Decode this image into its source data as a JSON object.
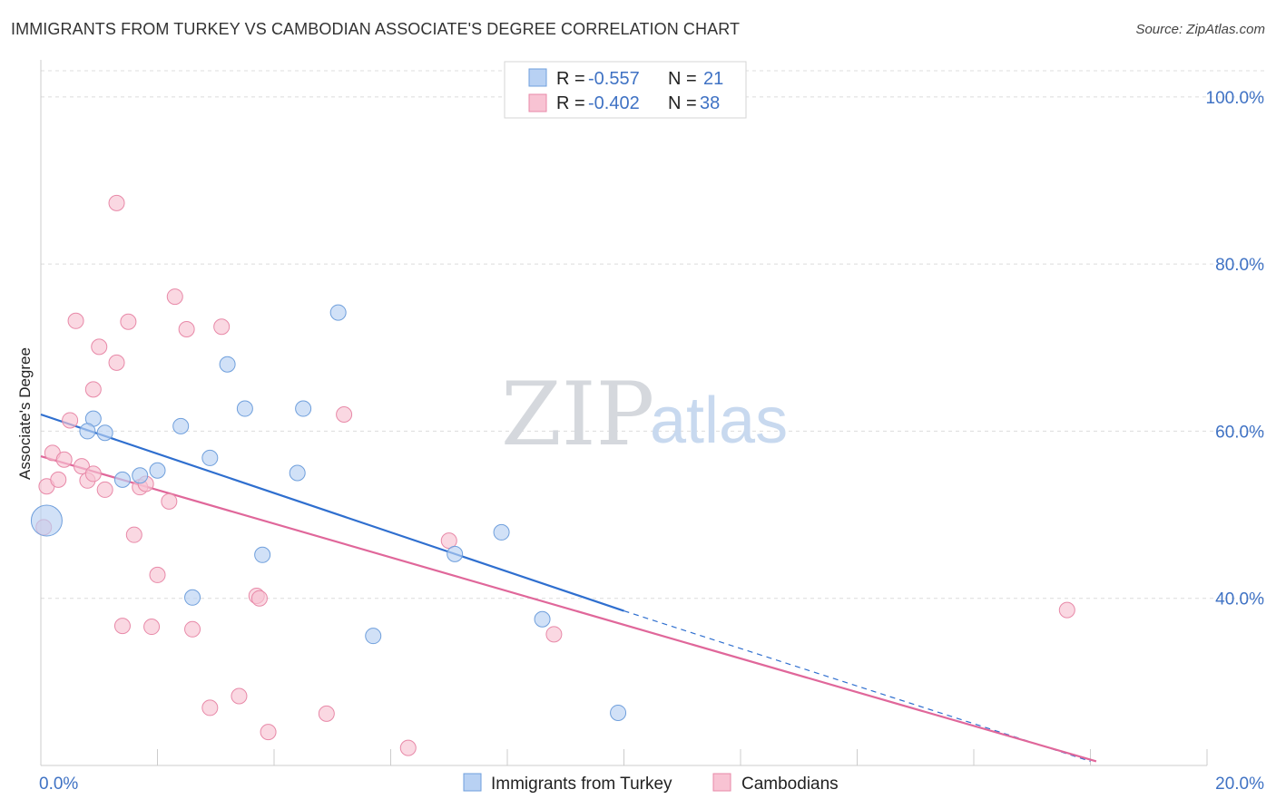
{
  "title": "IMMIGRANTS FROM TURKEY VS CAMBODIAN ASSOCIATE'S DEGREE CORRELATION CHART",
  "source": "Source: ZipAtlas.com",
  "watermark": {
    "zip": "ZIP",
    "atlas": "atlas"
  },
  "colors": {
    "turkey_fill": "#b8d1f3",
    "turkey_stroke": "#6f9fdc",
    "turkey_line": "#2f6fcf",
    "cambodian_fill": "#f8c3d3",
    "cambodian_stroke": "#e889a8",
    "cambodian_line": "#e0679a"
  },
  "legend": {
    "rows": [
      {
        "r_label": "R =",
        "r_value": "-0.557",
        "n_label": "N =",
        "n_value": "21"
      },
      {
        "r_label": "R =",
        "r_value": "-0.402",
        "n_label": "N =",
        "n_value": "38"
      }
    ]
  },
  "chart_data": {
    "type": "scatter",
    "xlabel": "",
    "ylabel": "Associate's Degree",
    "xlim": [
      0,
      20
    ],
    "ylim": [
      20,
      104
    ],
    "x_tick_labels": [
      "0.0%",
      "20.0%"
    ],
    "y_ticks": [
      40,
      60,
      80,
      100
    ],
    "y_tick_labels": [
      "40.0%",
      "60.0%",
      "80.0%",
      "100.0%"
    ],
    "grid": true,
    "legend_placement": "top-center",
    "series": [
      {
        "name": "Immigrants from Turkey",
        "points": [
          {
            "x": 0.1,
            "y": 49.3,
            "big": true
          },
          {
            "x": 0.9,
            "y": 61.5
          },
          {
            "x": 0.8,
            "y": 60.0
          },
          {
            "x": 1.1,
            "y": 59.8
          },
          {
            "x": 1.4,
            "y": 54.2
          },
          {
            "x": 1.7,
            "y": 54.7
          },
          {
            "x": 2.0,
            "y": 55.3
          },
          {
            "x": 2.4,
            "y": 60.6
          },
          {
            "x": 2.9,
            "y": 56.8
          },
          {
            "x": 3.2,
            "y": 68.0
          },
          {
            "x": 3.5,
            "y": 62.7
          },
          {
            "x": 4.4,
            "y": 55.0
          },
          {
            "x": 4.5,
            "y": 62.7
          },
          {
            "x": 5.1,
            "y": 74.2
          },
          {
            "x": 2.6,
            "y": 40.1
          },
          {
            "x": 3.8,
            "y": 45.2
          },
          {
            "x": 5.7,
            "y": 35.5
          },
          {
            "x": 7.1,
            "y": 45.3
          },
          {
            "x": 7.9,
            "y": 47.9
          },
          {
            "x": 8.6,
            "y": 37.5
          },
          {
            "x": 9.9,
            "y": 26.3
          }
        ],
        "trend": {
          "x1": 0,
          "y1": 62.0,
          "x2": 10.0,
          "y2": 38.5,
          "dash_x2": 18.0,
          "dash_y2": 20.5
        }
      },
      {
        "name": "Cambodians",
        "points": [
          {
            "x": 0.05,
            "y": 48.5
          },
          {
            "x": 0.1,
            "y": 53.4
          },
          {
            "x": 0.2,
            "y": 57.4
          },
          {
            "x": 0.3,
            "y": 54.2
          },
          {
            "x": 0.4,
            "y": 56.6
          },
          {
            "x": 0.5,
            "y": 61.3
          },
          {
            "x": 0.6,
            "y": 73.2
          },
          {
            "x": 0.7,
            "y": 55.8
          },
          {
            "x": 0.8,
            "y": 54.1
          },
          {
            "x": 0.9,
            "y": 54.9
          },
          {
            "x": 0.9,
            "y": 65.0
          },
          {
            "x": 1.0,
            "y": 70.1
          },
          {
            "x": 1.1,
            "y": 53.0
          },
          {
            "x": 1.3,
            "y": 87.3
          },
          {
            "x": 1.3,
            "y": 68.2
          },
          {
            "x": 1.5,
            "y": 73.1
          },
          {
            "x": 1.6,
            "y": 47.6
          },
          {
            "x": 1.7,
            "y": 53.3
          },
          {
            "x": 1.8,
            "y": 53.7
          },
          {
            "x": 1.4,
            "y": 36.7
          },
          {
            "x": 1.9,
            "y": 36.6
          },
          {
            "x": 2.0,
            "y": 42.8
          },
          {
            "x": 2.2,
            "y": 51.6
          },
          {
            "x": 2.3,
            "y": 76.1
          },
          {
            "x": 2.5,
            "y": 72.2
          },
          {
            "x": 2.6,
            "y": 36.3
          },
          {
            "x": 2.9,
            "y": 26.9
          },
          {
            "x": 3.1,
            "y": 72.5
          },
          {
            "x": 3.4,
            "y": 28.3
          },
          {
            "x": 3.7,
            "y": 40.3
          },
          {
            "x": 3.75,
            "y": 40.0
          },
          {
            "x": 3.9,
            "y": 24.0
          },
          {
            "x": 4.9,
            "y": 26.2
          },
          {
            "x": 5.2,
            "y": 62.0
          },
          {
            "x": 6.3,
            "y": 22.1
          },
          {
            "x": 7.0,
            "y": 46.9
          },
          {
            "x": 8.8,
            "y": 35.7
          },
          {
            "x": 17.6,
            "y": 38.6
          }
        ],
        "trend": {
          "x1": 0,
          "y1": 57.0,
          "x2": 18.1,
          "y2": 20.5
        }
      }
    ]
  }
}
